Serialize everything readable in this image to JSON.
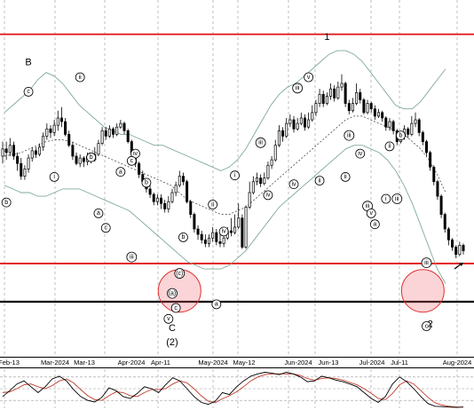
{
  "chart_data": {
    "type": "candlestick",
    "title": "",
    "x_ticks": [
      "Feb-13",
      "Mar-2024",
      "Mar-13",
      "Apr-2024",
      "Apr-11",
      "May-2024",
      "May-12",
      "Jun-2024",
      "Jun-13",
      "Jul-2024",
      "Jul-11",
      "Aug-2024"
    ],
    "grid": true,
    "candles": [
      [
        0.4,
        0.42,
        0.38,
        0.44
      ],
      [
        0.42,
        0.41,
        0.39,
        0.44
      ],
      [
        0.41,
        0.43,
        0.4,
        0.45
      ],
      [
        0.43,
        0.4,
        0.39,
        0.44
      ],
      [
        0.4,
        0.38,
        0.36,
        0.41
      ],
      [
        0.38,
        0.345,
        0.335,
        0.395
      ],
      [
        0.345,
        0.365,
        0.335,
        0.375
      ],
      [
        0.365,
        0.395,
        0.355,
        0.405
      ],
      [
        0.395,
        0.415,
        0.385,
        0.425
      ],
      [
        0.415,
        0.405,
        0.395,
        0.425
      ],
      [
        0.405,
        0.425,
        0.4,
        0.435
      ],
      [
        0.425,
        0.455,
        0.415,
        0.465
      ],
      [
        0.455,
        0.475,
        0.445,
        0.49
      ],
      [
        0.475,
        0.465,
        0.45,
        0.485
      ],
      [
        0.465,
        0.485,
        0.455,
        0.5
      ],
      [
        0.485,
        0.505,
        0.47,
        0.525
      ],
      [
        0.505,
        0.495,
        0.48,
        0.535
      ],
      [
        0.495,
        0.46,
        0.455,
        0.505
      ],
      [
        0.46,
        0.43,
        0.425,
        0.47
      ],
      [
        0.43,
        0.4,
        0.39,
        0.44
      ],
      [
        0.4,
        0.38,
        0.375,
        0.41
      ],
      [
        0.38,
        0.395,
        0.37,
        0.405
      ],
      [
        0.395,
        0.385,
        0.37,
        0.4
      ],
      [
        0.385,
        0.4,
        0.375,
        0.41
      ],
      [
        0.4,
        0.39,
        0.38,
        0.405
      ],
      [
        0.39,
        0.405,
        0.385,
        0.425
      ],
      [
        0.405,
        0.435,
        0.4,
        0.445
      ],
      [
        0.435,
        0.47,
        0.43,
        0.48
      ],
      [
        0.47,
        0.455,
        0.445,
        0.48
      ],
      [
        0.455,
        0.475,
        0.45,
        0.485
      ],
      [
        0.475,
        0.46,
        0.45,
        0.48
      ],
      [
        0.46,
        0.48,
        0.455,
        0.49
      ],
      [
        0.48,
        0.49,
        0.475,
        0.5
      ],
      [
        0.49,
        0.47,
        0.46,
        0.495
      ],
      [
        0.47,
        0.44,
        0.435,
        0.475
      ],
      [
        0.44,
        0.41,
        0.405,
        0.445
      ],
      [
        0.41,
        0.38,
        0.37,
        0.415
      ],
      [
        0.38,
        0.35,
        0.34,
        0.385
      ],
      [
        0.35,
        0.33,
        0.32,
        0.36
      ],
      [
        0.33,
        0.31,
        0.3,
        0.34
      ],
      [
        0.31,
        0.295,
        0.285,
        0.32
      ],
      [
        0.295,
        0.275,
        0.265,
        0.3
      ],
      [
        0.275,
        0.285,
        0.265,
        0.295
      ],
      [
        0.285,
        0.27,
        0.255,
        0.295
      ],
      [
        0.27,
        0.255,
        0.245,
        0.28
      ],
      [
        0.255,
        0.275,
        0.245,
        0.29
      ],
      [
        0.275,
        0.3,
        0.27,
        0.31
      ],
      [
        0.3,
        0.32,
        0.29,
        0.33
      ],
      [
        0.32,
        0.345,
        0.315,
        0.36
      ],
      [
        0.345,
        0.33,
        0.32,
        0.355
      ],
      [
        0.33,
        0.275,
        0.27,
        0.335
      ],
      [
        0.275,
        0.24,
        0.23,
        0.28
      ],
      [
        0.24,
        0.2,
        0.19,
        0.245
      ],
      [
        0.2,
        0.185,
        0.17,
        0.21
      ],
      [
        0.185,
        0.17,
        0.16,
        0.195
      ],
      [
        0.17,
        0.16,
        0.15,
        0.185
      ],
      [
        0.16,
        0.175,
        0.15,
        0.185
      ],
      [
        0.175,
        0.19,
        0.165,
        0.205
      ],
      [
        0.19,
        0.165,
        0.155,
        0.2
      ],
      [
        0.165,
        0.16,
        0.15,
        0.185
      ],
      [
        0.16,
        0.175,
        0.15,
        0.185
      ],
      [
        0.175,
        0.195,
        0.17,
        0.205
      ],
      [
        0.195,
        0.19,
        0.18,
        0.23
      ],
      [
        0.19,
        0.205,
        0.185,
        0.24
      ],
      [
        0.205,
        0.23,
        0.2,
        0.27
      ],
      [
        0.23,
        0.15,
        0.145,
        0.24
      ],
      [
        0.15,
        0.26,
        0.145,
        0.265
      ],
      [
        0.26,
        0.3,
        0.255,
        0.33
      ],
      [
        0.3,
        0.33,
        0.295,
        0.345
      ],
      [
        0.33,
        0.34,
        0.32,
        0.355
      ],
      [
        0.34,
        0.325,
        0.315,
        0.35
      ],
      [
        0.325,
        0.34,
        0.32,
        0.355
      ],
      [
        0.34,
        0.375,
        0.335,
        0.385
      ],
      [
        0.375,
        0.39,
        0.365,
        0.4
      ],
      [
        0.39,
        0.43,
        0.385,
        0.445
      ],
      [
        0.43,
        0.47,
        0.425,
        0.485
      ],
      [
        0.47,
        0.455,
        0.44,
        0.48
      ],
      [
        0.455,
        0.49,
        0.45,
        0.505
      ],
      [
        0.49,
        0.5,
        0.48,
        0.515
      ],
      [
        0.5,
        0.475,
        0.465,
        0.51
      ],
      [
        0.475,
        0.49,
        0.47,
        0.505
      ],
      [
        0.49,
        0.505,
        0.485,
        0.52
      ],
      [
        0.505,
        0.48,
        0.47,
        0.515
      ],
      [
        0.48,
        0.5,
        0.475,
        0.52
      ],
      [
        0.5,
        0.52,
        0.495,
        0.54
      ],
      [
        0.52,
        0.545,
        0.51,
        0.555
      ],
      [
        0.545,
        0.57,
        0.535,
        0.585
      ],
      [
        0.57,
        0.545,
        0.535,
        0.58
      ],
      [
        0.545,
        0.565,
        0.54,
        0.575
      ],
      [
        0.565,
        0.585,
        0.555,
        0.6
      ],
      [
        0.585,
        0.56,
        0.55,
        0.595
      ],
      [
        0.56,
        0.59,
        0.555,
        0.605
      ],
      [
        0.59,
        0.6,
        0.58,
        0.625
      ],
      [
        0.6,
        0.545,
        0.535,
        0.605
      ],
      [
        0.545,
        0.525,
        0.515,
        0.555
      ],
      [
        0.525,
        0.545,
        0.52,
        0.56
      ],
      [
        0.545,
        0.575,
        0.54,
        0.6
      ],
      [
        0.575,
        0.555,
        0.545,
        0.585
      ],
      [
        0.555,
        0.52,
        0.515,
        0.56
      ],
      [
        0.52,
        0.545,
        0.515,
        0.555
      ],
      [
        0.545,
        0.53,
        0.52,
        0.55
      ],
      [
        0.53,
        0.51,
        0.5,
        0.54
      ],
      [
        0.51,
        0.52,
        0.505,
        0.53
      ],
      [
        0.52,
        0.505,
        0.495,
        0.525
      ],
      [
        0.505,
        0.48,
        0.47,
        0.51
      ],
      [
        0.48,
        0.495,
        0.47,
        0.505
      ],
      [
        0.495,
        0.47,
        0.46,
        0.5
      ],
      [
        0.47,
        0.44,
        0.43,
        0.475
      ],
      [
        0.44,
        0.455,
        0.435,
        0.465
      ],
      [
        0.455,
        0.475,
        0.445,
        0.485
      ],
      [
        0.475,
        0.46,
        0.45,
        0.48
      ],
      [
        0.46,
        0.49,
        0.455,
        0.51
      ],
      [
        0.49,
        0.5,
        0.48,
        0.52
      ],
      [
        0.5,
        0.465,
        0.455,
        0.505
      ],
      [
        0.465,
        0.44,
        0.43,
        0.47
      ],
      [
        0.44,
        0.41,
        0.4,
        0.445
      ],
      [
        0.41,
        0.37,
        0.36,
        0.415
      ],
      [
        0.37,
        0.33,
        0.32,
        0.375
      ],
      [
        0.33,
        0.29,
        0.28,
        0.335
      ],
      [
        0.29,
        0.24,
        0.23,
        0.295
      ],
      [
        0.24,
        0.2,
        0.19,
        0.245
      ],
      [
        0.2,
        0.17,
        0.155,
        0.205
      ],
      [
        0.17,
        0.15,
        0.14,
        0.175
      ],
      [
        0.15,
        0.13,
        0.12,
        0.155
      ],
      [
        0.13,
        0.155,
        0.125,
        0.165
      ],
      [
        0.155,
        0.14,
        0.13,
        0.16
      ]
    ],
    "bollinger_mid": [
      0.4,
      0.405,
      0.41,
      0.42,
      0.43,
      0.44,
      0.445,
      0.445,
      0.44,
      0.43,
      0.42,
      0.41,
      0.4,
      0.39,
      0.38,
      0.37,
      0.36,
      0.35,
      0.34,
      0.33,
      0.32,
      0.3,
      0.28,
      0.27,
      0.26,
      0.25,
      0.24,
      0.24,
      0.25,
      0.26,
      0.28,
      0.3,
      0.32,
      0.34,
      0.36,
      0.38,
      0.4,
      0.42,
      0.44,
      0.46,
      0.48,
      0.5,
      0.51,
      0.51,
      0.5,
      0.49,
      0.48,
      0.47,
      0.46,
      0.44,
      0.42,
      0.39,
      0.35,
      0.3
    ],
    "bollinger_upper": [
      0.52,
      0.54,
      0.56,
      0.58,
      0.61,
      0.63,
      0.62,
      0.6,
      0.57,
      0.54,
      0.52,
      0.5,
      0.48,
      0.47,
      0.46,
      0.46,
      0.45,
      0.44,
      0.43,
      0.43,
      0.42,
      0.41,
      0.4,
      0.39,
      0.38,
      0.37,
      0.36,
      0.37,
      0.39,
      0.42,
      0.46,
      0.5,
      0.54,
      0.57,
      0.59,
      0.6,
      0.62,
      0.64,
      0.66,
      0.68,
      0.69,
      0.69,
      0.68,
      0.66,
      0.63,
      0.6,
      0.57,
      0.54,
      0.53,
      0.53,
      0.55,
      0.58,
      0.61,
      0.64
    ],
    "bollinger_lower": [
      0.32,
      0.31,
      0.3,
      0.3,
      0.29,
      0.29,
      0.3,
      0.31,
      0.31,
      0.31,
      0.3,
      0.29,
      0.28,
      0.27,
      0.26,
      0.25,
      0.23,
      0.21,
      0.19,
      0.17,
      0.15,
      0.13,
      0.11,
      0.1,
      0.09,
      0.09,
      0.09,
      0.1,
      0.12,
      0.14,
      0.17,
      0.2,
      0.23,
      0.26,
      0.28,
      0.3,
      0.32,
      0.34,
      0.36,
      0.38,
      0.4,
      0.42,
      0.43,
      0.43,
      0.42,
      0.41,
      0.39,
      0.36,
      0.32,
      0.27,
      0.21,
      0.15,
      0.09,
      0.05
    ],
    "horizontal_lines": [
      {
        "level": 0.735,
        "color": "#e01010"
      },
      {
        "level": 0.105,
        "color": "#e01010"
      },
      {
        "level": 0.0,
        "color": "#000000"
      }
    ],
    "wave_labels": [
      {
        "text": "b",
        "i": 1,
        "y": 0.29,
        "pos": "below"
      },
      {
        "text": "c",
        "i": 7,
        "y": 0.56,
        "pos": "above"
      },
      {
        "text": "i",
        "i": 14,
        "y": 0.36,
        "pos": "below"
      },
      {
        "text": "ii",
        "i": 21,
        "y": 0.6,
        "pos": "above"
      },
      {
        "text": "b",
        "i": 24,
        "y": 0.38,
        "pos": "above"
      },
      {
        "text": "a",
        "i": 26,
        "y": 0.26,
        "pos": "below"
      },
      {
        "text": "c",
        "i": 28,
        "y": 0.22,
        "pos": "below"
      },
      {
        "text": "a",
        "i": 32,
        "y": 0.34,
        "pos": "above"
      },
      {
        "text": "iii",
        "i": 35,
        "y": 0.14,
        "pos": "below"
      },
      {
        "text": "iv",
        "i": 36,
        "y": 0.39,
        "pos": "above"
      },
      {
        "text": "c",
        "i": 35,
        "y": 0.37,
        "pos": "above"
      },
      {
        "text": "b",
        "i": 39,
        "y": 0.31,
        "pos": "above"
      },
      {
        "text": "(c)",
        "i": 48,
        "y": 0.095,
        "pos": "below"
      },
      {
        "text": "b",
        "i": 49,
        "y": 0.16,
        "pos": "above"
      },
      {
        "text": "(a)",
        "i": 46,
        "y": 0.04,
        "pos": "below"
      },
      {
        "text": "c",
        "i": 47,
        "y": 0.0,
        "pos": "below"
      },
      {
        "text": "v",
        "i": 45,
        "y": -0.03,
        "pos": "below"
      },
      {
        "text": "a",
        "i": 58,
        "y": 0.01,
        "pos": "below"
      },
      {
        "text": "ii",
        "i": 57,
        "y": 0.25,
        "pos": "above"
      },
      {
        "text": "iv",
        "i": 60,
        "y": 0.21,
        "pos": "below"
      },
      {
        "text": "i",
        "i": 63,
        "y": 0.33,
        "pos": "above"
      },
      {
        "text": "iii",
        "i": 70,
        "y": 0.42,
        "pos": "above"
      },
      {
        "text": "iv",
        "i": 72,
        "y": 0.31,
        "pos": "below"
      },
      {
        "text": "iii",
        "i": 80,
        "y": 0.57,
        "pos": "above"
      },
      {
        "text": "v",
        "i": 83,
        "y": 0.6,
        "pos": "above"
      },
      {
        "text": "iv",
        "i": 79,
        "y": 0.34,
        "pos": "below"
      },
      {
        "text": "ii",
        "i": 86,
        "y": 0.35,
        "pos": "below"
      },
      {
        "text": "iii",
        "i": 94,
        "y": 0.44,
        "pos": "above"
      },
      {
        "text": "ii",
        "i": 93,
        "y": 0.36,
        "pos": "below"
      },
      {
        "text": "iv",
        "i": 97,
        "y": 0.39,
        "pos": "above"
      },
      {
        "text": "iii",
        "i": 99,
        "y": 0.28,
        "pos": "below"
      },
      {
        "text": "v",
        "i": 100,
        "y": 0.26,
        "pos": "below"
      },
      {
        "text": "a",
        "i": 101,
        "y": 0.23,
        "pos": "below"
      },
      {
        "text": "ii",
        "i": 105,
        "y": 0.41,
        "pos": "above"
      },
      {
        "text": "i",
        "i": 104,
        "y": 0.3,
        "pos": "below"
      },
      {
        "text": "iii",
        "i": 107,
        "y": 0.3,
        "pos": "below"
      },
      {
        "text": "b",
        "i": 108,
        "y": 0.44,
        "pos": "above"
      },
      {
        "text": "iii",
        "i": 115,
        "y": 0.09,
        "pos": "above"
      },
      {
        "text": "c",
        "i": 115,
        "y": -0.05,
        "pos": "below"
      }
    ],
    "big_labels": [
      {
        "text": "B",
        "i": 7,
        "y": 0.65
      },
      {
        "text": "C",
        "i": 46,
        "y": -0.08
      },
      {
        "text": "(2)",
        "i": 46,
        "y": -0.12
      },
      {
        "text": "1",
        "i": 88,
        "y": 0.72
      },
      {
        "text": "2",
        "i": 116,
        "y": -0.07
      }
    ],
    "highlight_circles": [
      {
        "i": 48,
        "y": 0.03
      },
      {
        "i": 114,
        "y": 0.03
      }
    ],
    "oscillator": {
      "k": [
        0.3,
        0.45,
        0.62,
        0.7,
        0.55,
        0.4,
        0.55,
        0.75,
        0.82,
        0.7,
        0.48,
        0.3,
        0.2,
        0.16,
        0.28,
        0.52,
        0.45,
        0.3,
        0.25,
        0.38,
        0.55,
        0.5,
        0.4,
        0.6,
        0.78,
        0.7,
        0.5,
        0.3,
        0.15,
        0.1,
        0.18,
        0.4,
        0.35,
        0.55,
        0.7,
        0.82,
        0.88,
        0.92,
        0.9,
        0.86,
        0.92,
        0.88,
        0.8,
        0.68,
        0.7,
        0.82,
        0.78,
        0.72,
        0.68,
        0.62,
        0.55,
        0.4,
        0.25,
        0.15,
        0.3,
        0.62,
        0.8,
        0.68,
        0.5,
        0.3,
        0.12,
        0.05,
        0.04,
        0.03,
        0.02,
        0.03
      ],
      "d": [
        0.4,
        0.42,
        0.5,
        0.6,
        0.62,
        0.55,
        0.5,
        0.58,
        0.7,
        0.75,
        0.65,
        0.48,
        0.32,
        0.22,
        0.2,
        0.32,
        0.42,
        0.4,
        0.32,
        0.3,
        0.4,
        0.48,
        0.48,
        0.5,
        0.62,
        0.7,
        0.65,
        0.5,
        0.32,
        0.18,
        0.14,
        0.24,
        0.32,
        0.42,
        0.55,
        0.7,
        0.8,
        0.86,
        0.88,
        0.88,
        0.88,
        0.88,
        0.84,
        0.76,
        0.72,
        0.76,
        0.78,
        0.76,
        0.72,
        0.66,
        0.6,
        0.5,
        0.38,
        0.25,
        0.22,
        0.38,
        0.6,
        0.7,
        0.62,
        0.45,
        0.28,
        0.14,
        0.08,
        0.05,
        0.03,
        0.03
      ]
    }
  }
}
